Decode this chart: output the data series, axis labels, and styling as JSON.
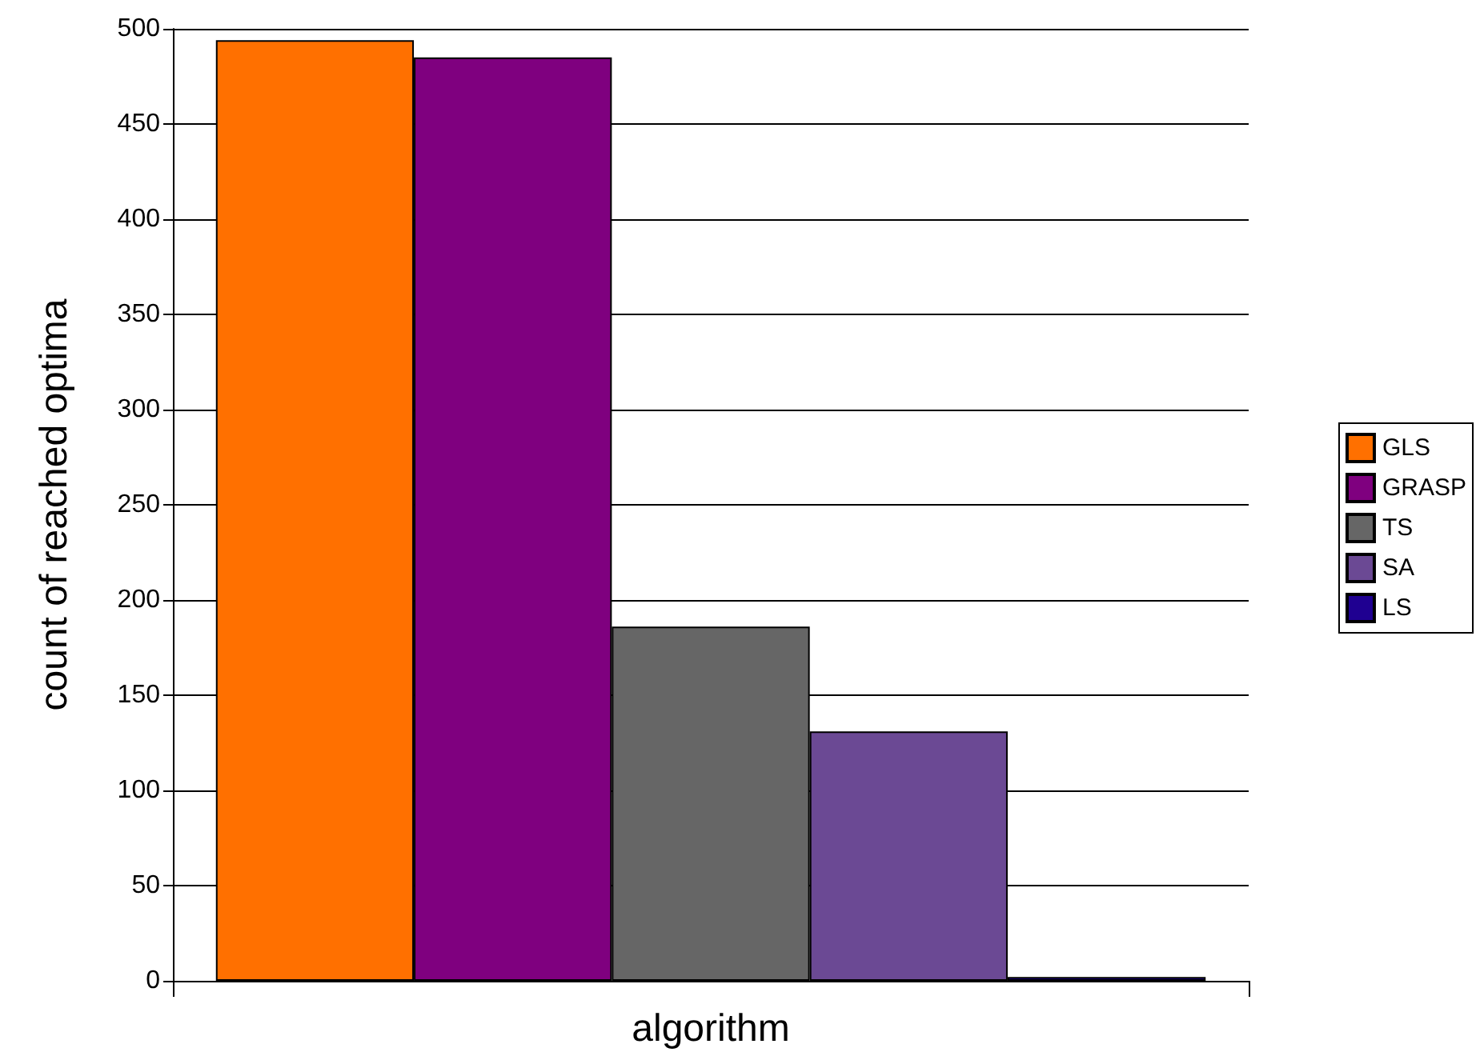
{
  "chart_data": {
    "type": "bar",
    "xlabel": "algorithm",
    "ylabel": "count of reached optima",
    "categories": [
      null
    ],
    "series": [
      {
        "name": "GLS",
        "color": "#ff7000",
        "values": [
          494
        ]
      },
      {
        "name": "GRASP",
        "color": "#7f007f",
        "values": [
          485
        ]
      },
      {
        "name": "TS",
        "color": "#666666",
        "values": [
          186
        ]
      },
      {
        "name": "SA",
        "color": "#6b4994",
        "values": [
          131
        ]
      },
      {
        "name": "LS",
        "color": "#1f0091",
        "values": [
          2
        ]
      }
    ],
    "ylim": [
      0,
      500
    ],
    "yticks": [
      0,
      50,
      100,
      150,
      200,
      250,
      300,
      350,
      400,
      450,
      500
    ],
    "grid": "y",
    "legend": "right"
  }
}
